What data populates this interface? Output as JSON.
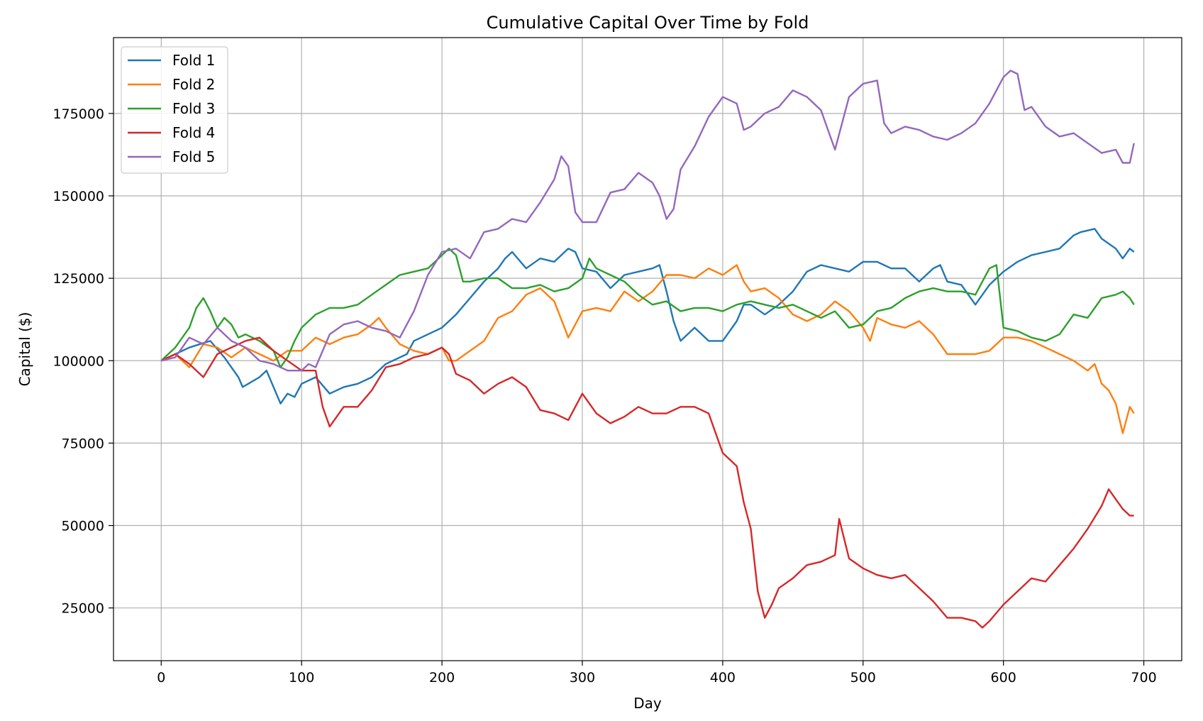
{
  "chart_data": {
    "type": "line",
    "title": "Cumulative Capital Over Time by Fold",
    "xlabel": "Day",
    "ylabel": "Capital ($)",
    "xlim": [
      -34,
      727
    ],
    "ylim": [
      9000,
      198000
    ],
    "xticks": [
      0,
      100,
      200,
      300,
      400,
      500,
      600,
      700
    ],
    "xtick_labels": [
      "0",
      "100",
      "200",
      "300",
      "400",
      "500",
      "600",
      "700"
    ],
    "yticks": [
      25000,
      50000,
      75000,
      100000,
      125000,
      150000,
      175000
    ],
    "ytick_labels": [
      "25000",
      "50000",
      "75000",
      "100000",
      "125000",
      "150000",
      "175000"
    ],
    "grid": true,
    "legend_position": "top-left",
    "series": [
      {
        "name": "Fold 1",
        "color": "#1f77b4",
        "x": [
          0,
          10,
          20,
          35,
          45,
          50,
          55,
          58,
          62,
          70,
          75,
          80,
          85,
          90,
          95,
          100,
          110,
          120,
          130,
          140,
          150,
          160,
          175,
          180,
          200,
          210,
          220,
          230,
          240,
          245,
          250,
          260,
          270,
          280,
          290,
          295,
          300,
          310,
          320,
          330,
          340,
          350,
          355,
          360,
          365,
          370,
          380,
          390,
          400,
          410,
          415,
          420,
          430,
          440,
          450,
          460,
          470,
          480,
          490,
          500,
          510,
          520,
          530,
          540,
          550,
          555,
          560,
          570,
          580,
          590,
          600,
          610,
          620,
          630,
          640,
          650,
          655,
          665,
          670,
          680,
          685,
          690,
          693
        ],
        "y": [
          100000,
          102000,
          104000,
          106000,
          101000,
          98000,
          95000,
          92000,
          93000,
          95000,
          97000,
          92000,
          87000,
          90000,
          89000,
          93000,
          95000,
          90000,
          92000,
          93000,
          95000,
          99000,
          102000,
          106000,
          110000,
          114000,
          119000,
          124000,
          128000,
          131000,
          133000,
          128000,
          131000,
          130000,
          134000,
          133000,
          128000,
          127000,
          122000,
          126000,
          127000,
          128000,
          129000,
          121000,
          112000,
          106000,
          110000,
          106000,
          106000,
          112000,
          117000,
          117000,
          114000,
          117000,
          121000,
          127000,
          129000,
          128000,
          127000,
          130000,
          130000,
          128000,
          128000,
          124000,
          128000,
          129000,
          124000,
          123000,
          117000,
          123000,
          127000,
          130000,
          132000,
          133000,
          134000,
          138000,
          139000,
          140000,
          137000,
          134000,
          131000,
          134000,
          133000
        ]
      },
      {
        "name": "Fold 2",
        "color": "#ff7f0e",
        "x": [
          0,
          10,
          20,
          30,
          40,
          50,
          60,
          70,
          80,
          90,
          100,
          110,
          120,
          130,
          140,
          150,
          155,
          160,
          170,
          180,
          190,
          200,
          205,
          210,
          220,
          230,
          240,
          250,
          260,
          270,
          280,
          290,
          295,
          300,
          310,
          320,
          330,
          340,
          350,
          360,
          370,
          380,
          390,
          400,
          410,
          415,
          420,
          430,
          440,
          450,
          460,
          470,
          480,
          490,
          500,
          505,
          510,
          520,
          530,
          540,
          550,
          560,
          570,
          580,
          590,
          600,
          610,
          620,
          630,
          640,
          650,
          660,
          665,
          670,
          675,
          680,
          685,
          690,
          693
        ],
        "y": [
          100000,
          102000,
          98000,
          105000,
          104000,
          101000,
          104000,
          102000,
          100000,
          103000,
          103000,
          107000,
          105000,
          107000,
          108000,
          111000,
          113000,
          110000,
          105000,
          103000,
          102000,
          104000,
          100000,
          100000,
          103000,
          106000,
          113000,
          115000,
          120000,
          122000,
          118000,
          107000,
          111000,
          115000,
          116000,
          115000,
          121000,
          118000,
          121000,
          126000,
          126000,
          125000,
          128000,
          126000,
          129000,
          124000,
          121000,
          122000,
          119000,
          114000,
          112000,
          114000,
          118000,
          115000,
          110000,
          106000,
          113000,
          111000,
          110000,
          112000,
          108000,
          102000,
          102000,
          102000,
          103000,
          107000,
          107000,
          106000,
          104000,
          102000,
          100000,
          97000,
          99000,
          93000,
          91000,
          87000,
          78000,
          86000,
          84000
        ]
      },
      {
        "name": "Fold 3",
        "color": "#2ca02c",
        "x": [
          0,
          10,
          20,
          25,
          30,
          35,
          40,
          45,
          50,
          55,
          60,
          70,
          80,
          85,
          90,
          95,
          100,
          110,
          120,
          130,
          140,
          150,
          160,
          170,
          180,
          190,
          200,
          205,
          210,
          215,
          220,
          230,
          240,
          250,
          260,
          270,
          280,
          290,
          300,
          305,
          310,
          320,
          330,
          340,
          350,
          360,
          370,
          380,
          390,
          400,
          410,
          420,
          430,
          440,
          450,
          460,
          470,
          480,
          490,
          500,
          510,
          520,
          530,
          540,
          550,
          560,
          570,
          580,
          590,
          595,
          600,
          610,
          620,
          630,
          640,
          650,
          660,
          670,
          680,
          685,
          690,
          693
        ],
        "y": [
          100000,
          104000,
          110000,
          116000,
          119000,
          115000,
          110000,
          113000,
          111000,
          107000,
          108000,
          106000,
          103000,
          98000,
          101000,
          106000,
          110000,
          114000,
          116000,
          116000,
          117000,
          120000,
          123000,
          126000,
          127000,
          128000,
          132000,
          134000,
          132000,
          124000,
          124000,
          125000,
          125000,
          122000,
          122000,
          123000,
          121000,
          122000,
          125000,
          131000,
          128000,
          126000,
          124000,
          120000,
          117000,
          118000,
          115000,
          116000,
          116000,
          115000,
          117000,
          118000,
          117000,
          116000,
          117000,
          115000,
          113000,
          115000,
          110000,
          111000,
          115000,
          116000,
          119000,
          121000,
          122000,
          121000,
          121000,
          120000,
          128000,
          129000,
          110000,
          109000,
          107000,
          106000,
          108000,
          114000,
          113000,
          119000,
          120000,
          121000,
          119000,
          117000
        ]
      },
      {
        "name": "Fold 4",
        "color": "#d62728",
        "x": [
          0,
          10,
          20,
          30,
          40,
          50,
          60,
          70,
          80,
          90,
          100,
          110,
          115,
          120,
          125,
          130,
          140,
          150,
          160,
          170,
          180,
          190,
          200,
          205,
          210,
          220,
          230,
          240,
          250,
          260,
          270,
          280,
          290,
          300,
          310,
          320,
          330,
          340,
          350,
          360,
          370,
          380,
          390,
          395,
          400,
          410,
          415,
          420,
          425,
          430,
          435,
          440,
          450,
          460,
          470,
          480,
          483,
          490,
          500,
          510,
          520,
          530,
          540,
          550,
          560,
          570,
          580,
          585,
          590,
          600,
          610,
          620,
          630,
          640,
          650,
          660,
          670,
          675,
          680,
          685,
          690,
          693
        ],
        "y": [
          100000,
          102000,
          99000,
          95000,
          102000,
          104000,
          106000,
          107000,
          103000,
          100000,
          97000,
          97000,
          86000,
          80000,
          83000,
          86000,
          86000,
          91000,
          98000,
          99000,
          101000,
          102000,
          104000,
          102000,
          96000,
          94000,
          90000,
          93000,
          95000,
          92000,
          85000,
          84000,
          82000,
          90000,
          84000,
          81000,
          83000,
          86000,
          84000,
          84000,
          86000,
          86000,
          84000,
          78000,
          72000,
          68000,
          57000,
          49000,
          30000,
          22000,
          26000,
          31000,
          34000,
          38000,
          39000,
          41000,
          52000,
          40000,
          37000,
          35000,
          34000,
          35000,
          31000,
          27000,
          22000,
          22000,
          21000,
          19000,
          21000,
          26000,
          30000,
          34000,
          33000,
          38000,
          43000,
          49000,
          56000,
          61000,
          58000,
          55000,
          53000,
          53000
        ]
      },
      {
        "name": "Fold 5",
        "color": "#9467bd",
        "x": [
          0,
          10,
          20,
          30,
          40,
          50,
          60,
          70,
          80,
          90,
          100,
          105,
          110,
          120,
          130,
          140,
          150,
          160,
          170,
          180,
          190,
          200,
          210,
          220,
          230,
          240,
          250,
          260,
          270,
          280,
          285,
          290,
          295,
          300,
          310,
          320,
          330,
          340,
          350,
          355,
          360,
          365,
          370,
          380,
          390,
          400,
          410,
          415,
          420,
          430,
          440,
          450,
          460,
          470,
          475,
          480,
          490,
          500,
          510,
          515,
          520,
          530,
          540,
          550,
          560,
          570,
          580,
          590,
          600,
          605,
          610,
          615,
          620,
          630,
          640,
          650,
          660,
          670,
          680,
          685,
          690,
          693
        ],
        "y": [
          100000,
          101000,
          107000,
          105000,
          110000,
          106000,
          104000,
          100000,
          99000,
          97000,
          97000,
          99000,
          98000,
          108000,
          111000,
          112000,
          110000,
          109000,
          107000,
          115000,
          126000,
          133000,
          134000,
          131000,
          139000,
          140000,
          143000,
          142000,
          148000,
          155000,
          162000,
          159000,
          145000,
          142000,
          142000,
          151000,
          152000,
          157000,
          154000,
          150000,
          143000,
          146000,
          158000,
          165000,
          174000,
          180000,
          178000,
          170000,
          171000,
          175000,
          177000,
          182000,
          180000,
          176000,
          170000,
          164000,
          180000,
          184000,
          185000,
          172000,
          169000,
          171000,
          170000,
          168000,
          167000,
          169000,
          172000,
          178000,
          186000,
          188000,
          187000,
          176000,
          177000,
          171000,
          168000,
          169000,
          166000,
          163000,
          164000,
          160000,
          160000,
          166000
        ]
      }
    ]
  }
}
